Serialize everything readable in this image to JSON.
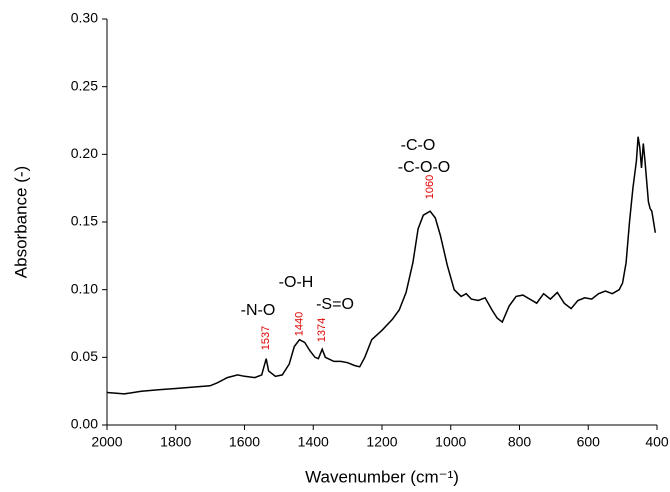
{
  "chart_data": {
    "type": "line",
    "xlabel": "Wavenumber (cm⁻¹)",
    "ylabel": "Absorbance (-)",
    "x": [
      2000,
      1950,
      1900,
      1850,
      1800,
      1750,
      1700,
      1680,
      1650,
      1620,
      1600,
      1570,
      1550,
      1537,
      1530,
      1510,
      1490,
      1470,
      1455,
      1440,
      1425,
      1410,
      1395,
      1385,
      1374,
      1365,
      1340,
      1320,
      1300,
      1280,
      1265,
      1250,
      1230,
      1200,
      1170,
      1150,
      1130,
      1110,
      1095,
      1080,
      1060,
      1045,
      1030,
      1010,
      990,
      970,
      955,
      940,
      920,
      900,
      880,
      865,
      850,
      830,
      810,
      790,
      770,
      750,
      730,
      710,
      690,
      670,
      650,
      630,
      610,
      590,
      570,
      550,
      530,
      510,
      500,
      490,
      480,
      470,
      460,
      455,
      450,
      445,
      440,
      435,
      430,
      425,
      420,
      415,
      410,
      405
    ],
    "values": [
      0.024,
      0.023,
      0.025,
      0.026,
      0.027,
      0.028,
      0.029,
      0.031,
      0.035,
      0.037,
      0.036,
      0.035,
      0.037,
      0.049,
      0.04,
      0.036,
      0.037,
      0.045,
      0.058,
      0.063,
      0.061,
      0.055,
      0.05,
      0.049,
      0.056,
      0.05,
      0.047,
      0.047,
      0.046,
      0.044,
      0.043,
      0.05,
      0.063,
      0.07,
      0.078,
      0.085,
      0.098,
      0.12,
      0.145,
      0.155,
      0.158,
      0.153,
      0.14,
      0.118,
      0.1,
      0.095,
      0.097,
      0.093,
      0.092,
      0.094,
      0.085,
      0.079,
      0.076,
      0.088,
      0.095,
      0.096,
      0.093,
      0.09,
      0.097,
      0.093,
      0.098,
      0.09,
      0.086,
      0.092,
      0.094,
      0.093,
      0.097,
      0.099,
      0.097,
      0.1,
      0.105,
      0.12,
      0.15,
      0.175,
      0.195,
      0.213,
      0.205,
      0.19,
      0.208,
      0.195,
      0.18,
      0.165,
      0.16,
      0.158,
      0.15,
      0.142
    ],
    "color": "#000000",
    "xlim": [
      2000,
      400
    ],
    "xticks": [
      2000,
      1800,
      1600,
      1400,
      1200,
      1000,
      800,
      600,
      400
    ],
    "ylim": [
      0,
      0.3
    ],
    "yticks": [
      {
        "value": 0,
        "label": "0.00"
      },
      0.05,
      {
        "value": 0.1,
        "label": "0.10"
      },
      0.15,
      {
        "value": 0.2,
        "label": "0.20"
      },
      0.25,
      {
        "value": 0.3,
        "label": "0.30"
      }
    ],
    "annotations": [
      "-N-O",
      "-O-H",
      "-S=O",
      "-C-O",
      "-C-O-O"
    ],
    "peak_labels": [
      1537,
      1440,
      1374,
      1060
    ],
    "peak_label_color": "#e00000"
  }
}
